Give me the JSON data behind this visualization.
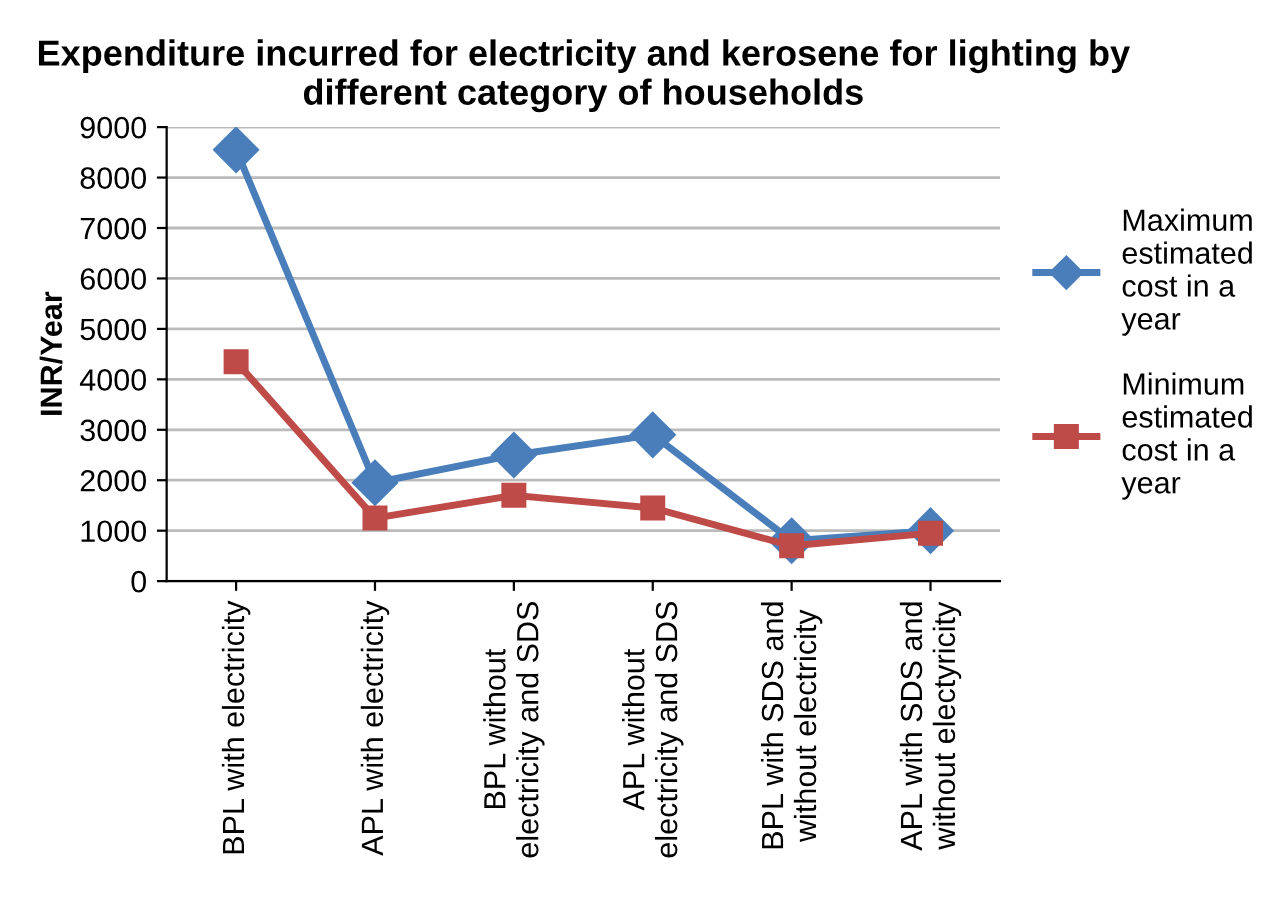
{
  "chart_data": {
    "type": "line",
    "title": "Expenditure incurred for electricity and kerosene for lighting by different category of households",
    "ylabel": "INR/Year",
    "categories": [
      "BPL with electricity",
      "APL with electricity",
      "BPL without\nelectricity and SDS",
      "APL without\nelectricity and SDS",
      "BPL with SDS and\nwithout electricity",
      "APL with SDS and\nwithout electyricity"
    ],
    "series": [
      {
        "name": "Maximum\nestimated\ncost in a\nyear",
        "color": "#4a7ebb",
        "marker": "diamond",
        "values": [
          8550,
          1950,
          2500,
          2900,
          800,
          1000
        ]
      },
      {
        "name": "Minimum\nestimated\ncost in a\nyear",
        "color": "#be4b48",
        "marker": "square",
        "values": [
          4350,
          1250,
          1700,
          1450,
          700,
          950
        ]
      }
    ],
    "ylim": [
      0,
      9000
    ],
    "yticks": [
      0,
      1000,
      2000,
      3000,
      4000,
      5000,
      6000,
      7000,
      8000,
      9000
    ],
    "grid": "y",
    "legend": "right"
  }
}
